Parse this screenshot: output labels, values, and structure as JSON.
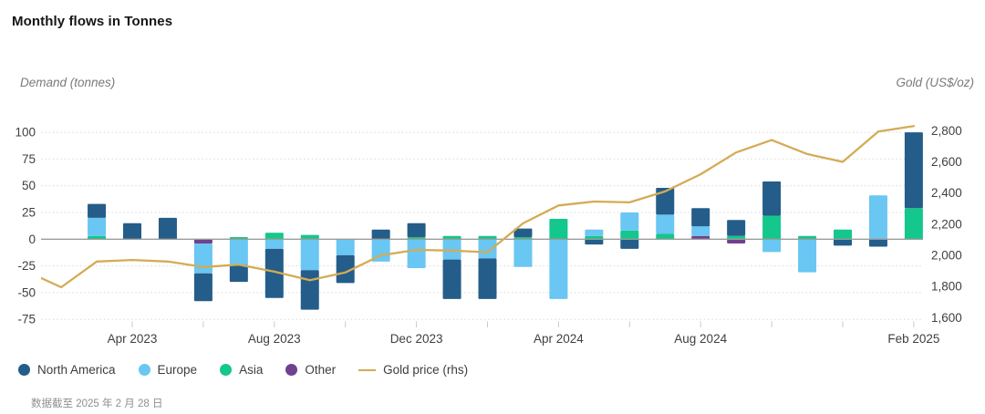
{
  "header": {
    "title": "Monthly flows in Tonnes"
  },
  "axes": {
    "left_title": "Demand (tonnes)",
    "right_title": "Gold (US$/oz)"
  },
  "legend": {
    "items": [
      {
        "label": "North America",
        "color": "#245d89"
      },
      {
        "label": "Europe",
        "color": "#6ac6f2"
      },
      {
        "label": "Asia",
        "color": "#14c78c"
      },
      {
        "label": "Other",
        "color": "#71408f"
      },
      {
        "label": "Gold price (rhs)",
        "color": "#d4ab55",
        "marker": "line"
      }
    ]
  },
  "footer": {
    "text": "数据截至 2025 年 2 月 28 日"
  },
  "chart_data": {
    "type": "bar",
    "subtype": "stacked-columns-with-line-overlay",
    "title": "Monthly flows in Tonnes",
    "xlabel": "",
    "ylabel_left": "Demand (tonnes)",
    "ylabel_right": "Gold (US$/oz)",
    "categories": [
      "Mar 2023",
      "Apr 2023",
      "May 2023",
      "Jun 2023",
      "Jul 2023",
      "Aug 2023",
      "Sep 2023",
      "Oct 2023",
      "Nov 2023",
      "Dec 2023",
      "Jan 2024",
      "Feb 2024",
      "Mar 2024",
      "Apr 2024",
      "May 2024",
      "Jun 2024",
      "Jul 2024",
      "Aug 2024",
      "Sep 2024",
      "Oct 2024",
      "Nov 2024",
      "Dec 2024",
      "Jan 2025",
      "Feb 2025"
    ],
    "stack_order_from_zero": [
      "Other",
      "Asia",
      "Europe",
      "North America"
    ],
    "series": [
      {
        "name": "North America",
        "color": "#245d89",
        "values": [
          13,
          15,
          20,
          -26,
          -16,
          -46,
          -37,
          -26,
          9,
          13,
          -37,
          -38,
          8,
          0,
          -5,
          -9,
          25,
          17,
          15,
          32,
          0,
          -6,
          -7,
          71
        ]
      },
      {
        "name": "Europe",
        "color": "#6ac6f2",
        "values": [
          17,
          0,
          0,
          -28,
          -24,
          -9,
          -29,
          -15,
          -21,
          -27,
          -19,
          -18,
          -26,
          -56,
          6,
          17,
          18,
          9,
          0,
          -12,
          -31,
          0,
          41,
          0
        ]
      },
      {
        "name": "Asia",
        "color": "#14c78c",
        "values": [
          3,
          0,
          0,
          0,
          2,
          6,
          4,
          0,
          0,
          2,
          3,
          3,
          2,
          19,
          3,
          8,
          5,
          0,
          3,
          22,
          3,
          9,
          0,
          29
        ]
      },
      {
        "name": "Other",
        "color": "#71408f",
        "values": [
          0,
          0,
          0,
          -4,
          0,
          0,
          0,
          0,
          0,
          0,
          0,
          0,
          0,
          0,
          0,
          0,
          0,
          3,
          -4,
          0,
          0,
          0,
          0,
          0
        ]
      }
    ],
    "line": {
      "name": "Gold price (rhs)",
      "color": "#d4ab55",
      "x": [
        "Jan 2023",
        "Feb 2023",
        "Mar 2023",
        "Apr 2023",
        "May 2023",
        "Jun 2023",
        "Jul 2023",
        "Aug 2023",
        "Sep 2023",
        "Oct 2023",
        "Nov 2023",
        "Dec 2023",
        "Jan 2024",
        "Feb 2024",
        "Mar 2024",
        "Apr 2024",
        "May 2024",
        "Jun 2024",
        "Jul 2024",
        "Aug 2024",
        "Sep 2024",
        "Oct 2024",
        "Nov 2024",
        "Dec 2024",
        "Jan 2025",
        "Feb 2025"
      ],
      "values": [
        1900,
        1795,
        1960,
        1970,
        1960,
        1925,
        1940,
        1895,
        1840,
        1890,
        2000,
        2035,
        2030,
        2020,
        2205,
        2320,
        2345,
        2340,
        2410,
        2520,
        2660,
        2740,
        2650,
        2600,
        2795,
        2830
      ]
    },
    "left_axis": {
      "min": -75,
      "max": 100,
      "step": 25,
      "ticks": [
        100,
        75,
        50,
        25,
        0,
        -25,
        -50,
        -75
      ]
    },
    "right_axis": {
      "min": 1600,
      "max": 2800,
      "step": 200,
      "ticks": [
        2800,
        2600,
        2400,
        2200,
        2000,
        1800,
        1600
      ]
    },
    "x_axis": {
      "tick_every_months": 2,
      "labels": [
        "Apr 2023",
        "Aug 2023",
        "Dec 2023",
        "Apr 2024",
        "Aug 2024",
        "Feb 2025"
      ]
    },
    "grid": "horizontal-dotted",
    "legend_position": "bottom-left"
  }
}
